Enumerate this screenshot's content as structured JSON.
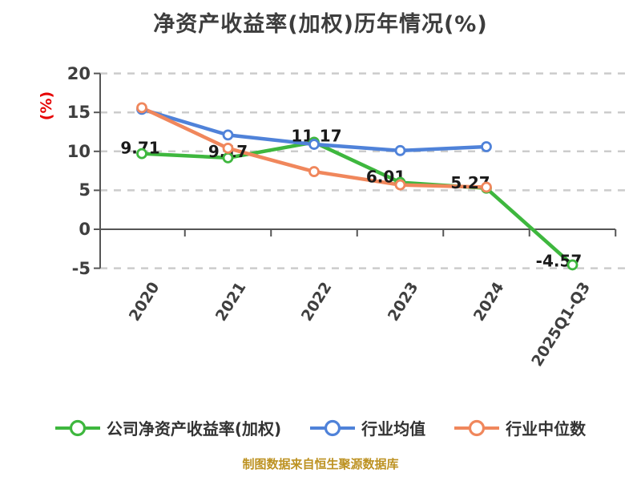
{
  "page": {
    "background": "#ffffff"
  },
  "chart_data": {
    "type": "line",
    "title": "净资产收益率(加权)历年情况(%)",
    "ylabel": "(%)",
    "categories": [
      "2020",
      "2021",
      "2022",
      "2023",
      "2024",
      "2025Q1-Q3"
    ],
    "yticks": [
      20,
      15,
      10,
      5,
      0,
      -5
    ],
    "ylim": [
      -5,
      20
    ],
    "grid": "horizontal-dashed",
    "legend_position": "bottom",
    "series": [
      {
        "name": "公司净资产收益率(加权)",
        "color": "#3eb73e",
        "values": [
          9.71,
          9.17,
          11.17,
          6.01,
          5.27,
          -4.57
        ],
        "point_labels": [
          "9.71",
          "9.17",
          "11.17",
          "6.01",
          "5.27",
          "-4.57"
        ]
      },
      {
        "name": "行业均值",
        "color": "#4f82d9",
        "values": [
          15.4,
          12.1,
          10.9,
          10.1,
          10.6,
          null
        ],
        "point_labels": []
      },
      {
        "name": "行业中位数",
        "color": "#f0875c",
        "values": [
          15.6,
          10.4,
          7.4,
          5.7,
          5.4,
          null
        ],
        "point_labels": []
      }
    ]
  },
  "footer": {
    "note": "制图数据来自恒生聚源数据库"
  },
  "palette": {
    "axis": "#555555",
    "grid": "#cccccc",
    "tick_label": "#3f3f3f",
    "title": "#3d3d3d",
    "ylabel_red": "#e60505",
    "legend_text": "#333333",
    "point_label": "#1a1a1a",
    "marker_fill": "#ffffff"
  }
}
